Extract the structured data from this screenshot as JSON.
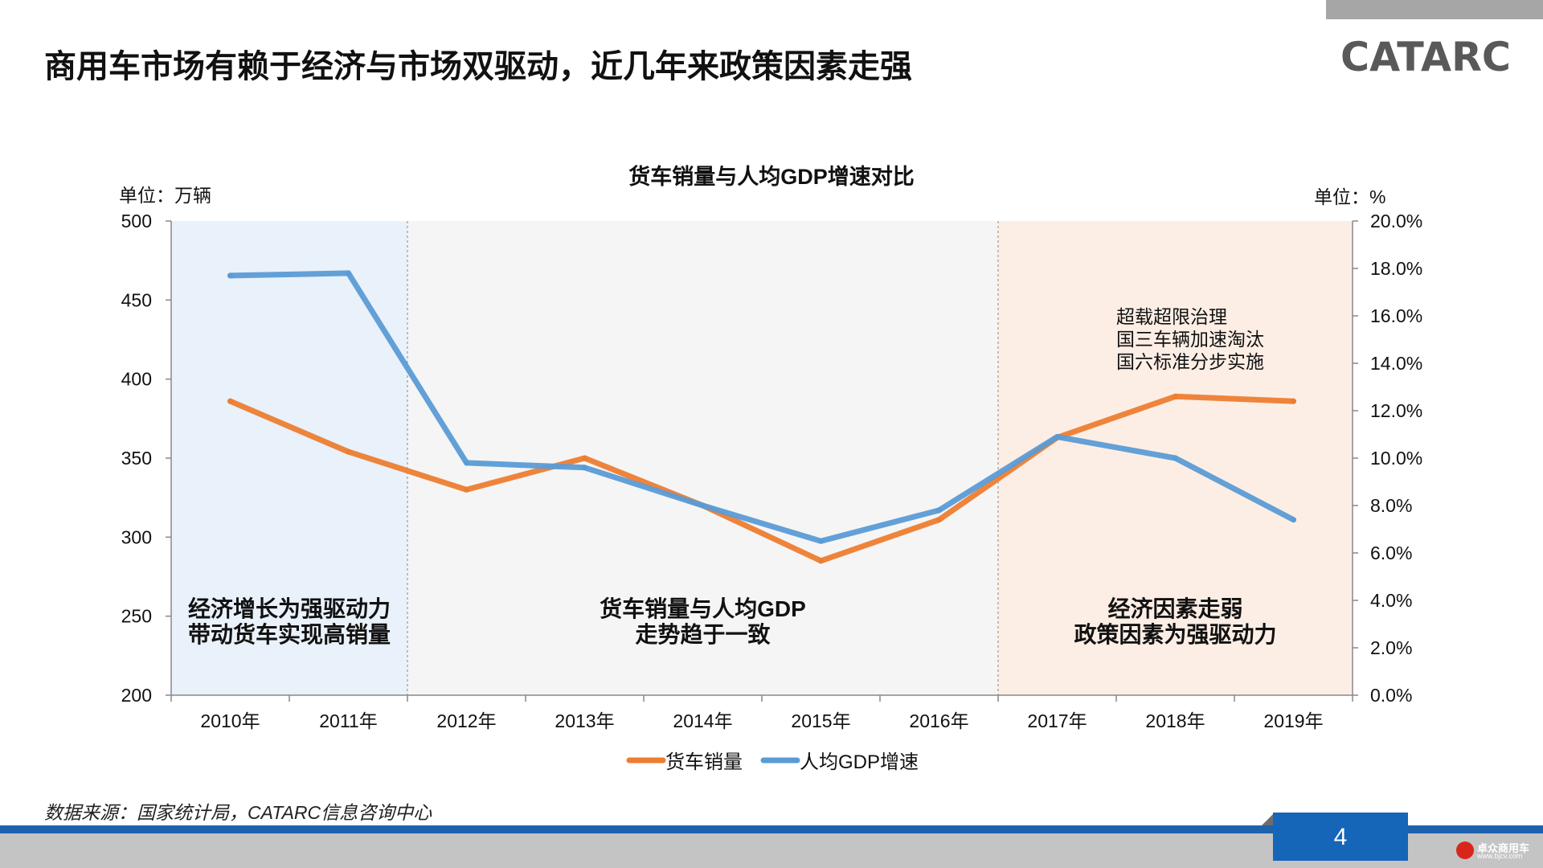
{
  "slide": {
    "title": "商用车市场有赖于经济与市场双驱动，近几年来政策因素走强",
    "logo_text": "CATARC",
    "source": "数据来源：国家统计局，CATARC信息咨询中心",
    "page_number": "4",
    "watermark": {
      "name": "卓众商用车",
      "url": "www.bjcv.com"
    }
  },
  "chart_data": {
    "type": "line",
    "title": "货车销量与人均GDP增速对比",
    "left_unit": "单位：万辆",
    "right_unit": "单位：%",
    "categories": [
      "2010年",
      "2011年",
      "2012年",
      "2013年",
      "2014年",
      "2015年",
      "2016年",
      "2017年",
      "2018年",
      "2019年"
    ],
    "y_left": {
      "min": 200,
      "max": 500,
      "ticks": [
        "200",
        "250",
        "300",
        "350",
        "400",
        "450",
        "500"
      ]
    },
    "y_right": {
      "min": 0,
      "max": 20,
      "ticks": [
        "0.0%",
        "2.0%",
        "4.0%",
        "6.0%",
        "8.0%",
        "10.0%",
        "12.0%",
        "14.0%",
        "16.0%",
        "18.0%",
        "20.0%"
      ]
    },
    "series": [
      {
        "name": "货车销量",
        "axis": "left",
        "color": "#ed7d31",
        "values": [
          386,
          354,
          330,
          350,
          320,
          285,
          311,
          363,
          389,
          386
        ]
      },
      {
        "name": "人均GDP增速",
        "axis": "right",
        "color": "#5b9bd5",
        "values": [
          17.7,
          17.8,
          9.8,
          9.6,
          8.0,
          6.5,
          7.8,
          10.9,
          10.0,
          7.4
        ]
      }
    ],
    "regions": [
      {
        "from": 0,
        "to": 2,
        "color": "#e9f1fa",
        "label": [
          "经济增长为强驱动力",
          "带动货车实现高销量"
        ]
      },
      {
        "from": 2,
        "to": 7,
        "color": "#f5f5f5",
        "label": [
          "货车销量与人均GDP",
          "走势趋于一致"
        ]
      },
      {
        "from": 7,
        "to": 10,
        "color": "#fdeee5",
        "label": [
          "经济因素走弱",
          "政策因素为强驱动力"
        ]
      }
    ],
    "annotation": [
      "超载超限治理",
      "国三车辆加速淘汰",
      "国六标准分步实施"
    ],
    "legend_position": "bottom"
  }
}
